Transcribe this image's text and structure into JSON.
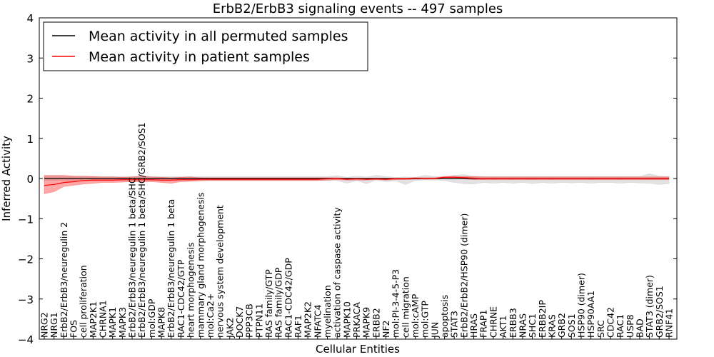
{
  "chart_data": {
    "type": "line",
    "title": "ErbB2/ErbB3 signaling events -- 497 samples",
    "xlabel": "Cellular Entities",
    "ylabel": "Inferred Activity",
    "ylim": [
      -4,
      4
    ],
    "yticks": [
      -4,
      -3,
      -2,
      -1,
      0,
      1,
      2,
      3,
      4
    ],
    "ytick_labels": [
      "−4",
      "−3",
      "−2",
      "−1",
      "0",
      "1",
      "2",
      "3",
      "4"
    ],
    "legend": {
      "placement": "top-left",
      "entries": [
        {
          "label": "Mean activity in all permuted samples",
          "color": "#000000"
        },
        {
          "label": "Mean activity in patient samples",
          "color": "#ff0000"
        }
      ]
    },
    "categories": [
      "NRG2",
      "NRG1",
      "ErbB2/ErbB3/neuregulin 2",
      "FOS",
      "cell proliferation",
      "MAP2K1",
      "CHRNA1",
      "MAPK1",
      "MAPK3",
      "ErbB2/ErbB3/neuregulin 1 beta/SHC",
      "ErbB2/ErbB3/neuregulin 1 beta/SHC/GRB2/SOS1",
      "mol:GDP",
      "MAPK8",
      "ErbB2/ErbB3/neuregulin 1 beta",
      "RAC1-CDC42/GTP",
      "heart morphogenesis",
      "mammary gland morphogenesis",
      "mol:Ca2+",
      "nervous system development",
      "JAK2",
      "DOCK7",
      "PPP3CB",
      "PTPN11",
      "RAS family/GTP",
      "RAS family/GDP",
      "RAC1-CDC42/GDP",
      "RAF1",
      "MAP2K2",
      "NFATC4",
      "myelination",
      "activation of caspase activity",
      "MAPK10",
      "PRKACA",
      "MAPK9",
      "ERBB2",
      "NF2",
      "mol:PI-3-4-5-P3",
      "cell migration",
      "mol:cAMP",
      "mol:GTP",
      "JUN",
      "apoptosis",
      "STAT3",
      "ErbB2/ErbB2/HSP90 (dimer)",
      "HRAS",
      "FRAP1",
      "CHRNE",
      "AKT1",
      "ERBB3",
      "NRAS",
      "SHC1",
      "ERBB2IP",
      "KRAS",
      "GRB2",
      "SOS1",
      "HSP90 (dimer)",
      "HSP90AA1",
      "SRC",
      "CDC42",
      "RAC1",
      "USP8",
      "BAD",
      "STAT3 (dimer)",
      "GRB2/SOS1",
      "RNF41"
    ],
    "series": [
      {
        "name": "Mean activity in all permuted samples",
        "color": "#000000",
        "values": [
          0,
          0,
          0,
          0,
          0,
          0,
          0,
          0,
          0,
          0,
          0,
          0,
          0,
          0,
          0,
          0,
          0,
          0,
          0,
          0,
          0,
          0,
          0,
          0,
          0,
          0,
          0,
          0,
          0,
          0,
          0,
          0,
          0,
          0,
          0,
          0,
          0,
          0,
          0,
          0,
          0,
          0,
          0,
          0,
          0,
          0,
          0,
          0,
          0,
          0,
          0,
          0,
          0,
          0,
          0,
          0,
          0,
          0,
          0,
          0,
          0,
          0,
          0,
          0,
          0
        ],
        "band_upper": [
          0.05,
          0.05,
          0.05,
          0.05,
          0.05,
          0.05,
          0.05,
          0.05,
          0.05,
          0.05,
          0.05,
          0.05,
          0.05,
          0.05,
          0.05,
          0.05,
          0.05,
          0.05,
          0.05,
          0.05,
          0.05,
          0.05,
          0.05,
          0.05,
          0.05,
          0.05,
          0.05,
          0.05,
          0.05,
          0.05,
          0.07,
          0.03,
          0.06,
          0.04,
          0.08,
          0.05,
          0.03,
          0.04,
          0.03,
          0.08,
          0.05,
          0.04,
          0.08,
          0.1,
          0.05,
          0.05,
          0.05,
          0.05,
          0.05,
          0.05,
          0.05,
          0.05,
          0.05,
          0.05,
          0.05,
          0.05,
          0.05,
          0.05,
          0.05,
          0.05,
          0.05,
          0.05,
          0.12,
          0.06,
          0.05
        ],
        "band_lower": [
          -0.05,
          -0.05,
          -0.05,
          -0.05,
          -0.05,
          -0.05,
          -0.05,
          -0.05,
          -0.05,
          -0.05,
          -0.05,
          -0.05,
          -0.05,
          -0.05,
          -0.05,
          -0.05,
          -0.05,
          -0.05,
          -0.05,
          -0.05,
          -0.05,
          -0.05,
          -0.05,
          -0.05,
          -0.05,
          -0.05,
          -0.05,
          -0.05,
          -0.05,
          -0.05,
          -0.05,
          -0.12,
          -0.05,
          -0.13,
          -0.04,
          -0.08,
          -0.06,
          -0.15,
          -0.05,
          -0.04,
          -0.04,
          -0.05,
          -0.1,
          -0.13,
          -0.14,
          -0.1,
          -0.12,
          -0.1,
          -0.12,
          -0.1,
          -0.13,
          -0.1,
          -0.12,
          -0.1,
          -0.11,
          -0.1,
          -0.12,
          -0.1,
          -0.1,
          -0.12,
          -0.1,
          -0.11,
          -0.12,
          -0.15,
          -0.13
        ]
      },
      {
        "name": "Mean activity in patient samples",
        "color": "#ff0000",
        "values": [
          -0.17,
          -0.15,
          -0.1,
          -0.08,
          -0.05,
          -0.04,
          -0.04,
          -0.04,
          -0.03,
          -0.03,
          -0.03,
          -0.03,
          -0.04,
          -0.04,
          -0.03,
          -0.03,
          -0.02,
          -0.02,
          -0.02,
          -0.02,
          -0.02,
          -0.02,
          -0.02,
          -0.02,
          -0.02,
          -0.02,
          -0.02,
          -0.02,
          -0.02,
          -0.01,
          0,
          -0.02,
          -0.01,
          -0.02,
          -0.01,
          -0.02,
          0,
          0,
          0.01,
          0,
          0,
          0.03,
          0.03,
          0.02,
          0.01,
          0,
          0,
          0,
          0,
          0,
          0,
          0,
          0,
          0,
          0,
          0,
          0,
          0,
          0,
          0,
          0,
          0,
          0,
          0,
          0
        ],
        "band_upper": [
          0.08,
          0.08,
          0.08,
          0.06,
          0.06,
          0.05,
          0.04,
          0.04,
          0.03,
          0.04,
          0.06,
          0.04,
          0.03,
          0.02,
          0.03,
          0.04,
          0.02,
          0.02,
          0.02,
          0.02,
          0.02,
          0.02,
          0.02,
          0.02,
          0.02,
          0.02,
          0.02,
          0.02,
          0.02,
          0.02,
          0.02,
          0.01,
          0.01,
          0.01,
          0.01,
          0.01,
          0.01,
          0.01,
          0.02,
          0.02,
          0.02,
          0.05,
          0.06,
          0.05,
          0.05,
          0.04,
          0.04,
          0.04,
          0.04,
          0.04,
          0.04,
          0.04,
          0.04,
          0.04,
          0.04,
          0.04,
          0.04,
          0.04,
          0.04,
          0.04,
          0.04,
          0.04,
          0.04,
          0.04,
          0.04
        ],
        "band_lower": [
          -0.38,
          -0.33,
          -0.2,
          -0.17,
          -0.14,
          -0.12,
          -0.1,
          -0.1,
          -0.09,
          -0.08,
          -0.09,
          -0.08,
          -0.1,
          -0.12,
          -0.08,
          -0.07,
          -0.06,
          -0.05,
          -0.05,
          -0.05,
          -0.05,
          -0.05,
          -0.05,
          -0.05,
          -0.05,
          -0.05,
          -0.05,
          -0.05,
          -0.05,
          -0.04,
          -0.03,
          -0.04,
          -0.04,
          -0.04,
          -0.03,
          -0.04,
          -0.03,
          -0.03,
          -0.02,
          -0.02,
          -0.02,
          0,
          0,
          -0.01,
          -0.03,
          -0.03,
          -0.03,
          -0.03,
          -0.03,
          -0.03,
          -0.03,
          -0.03,
          -0.03,
          -0.03,
          -0.03,
          -0.03,
          -0.03,
          -0.03,
          -0.03,
          -0.03,
          -0.03,
          -0.03,
          -0.03,
          -0.03,
          -0.03
        ]
      }
    ]
  }
}
